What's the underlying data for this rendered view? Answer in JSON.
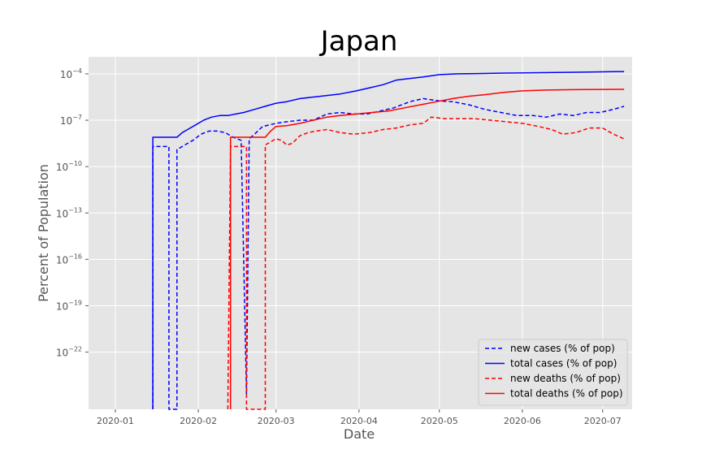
{
  "chart_data": {
    "type": "line",
    "title": "Japan",
    "xlabel": "Date",
    "ylabel": "Percent of Population",
    "x_tick_labels": [
      "2020-01",
      "2020-02",
      "2020-03",
      "2020-04",
      "2020-05",
      "2020-06",
      "2020-07"
    ],
    "x_tick_dates": [
      "2020-01-01",
      "2020-02-01",
      "2020-03-01",
      "2020-04-01",
      "2020-05-01",
      "2020-06-01",
      "2020-07-01"
    ],
    "xlim": [
      "2019-12-22",
      "2020-07-12"
    ],
    "y_scale": "log",
    "ylim_exp": [
      -25.7,
      -2.9
    ],
    "y_ticks": [
      {
        "base": "10",
        "exp": "−4",
        "value": 0.0001
      },
      {
        "base": "10",
        "exp": "−7",
        "value": 1e-07
      },
      {
        "base": "10",
        "exp": "−10",
        "value": 1e-10
      },
      {
        "base": "10",
        "exp": "−13",
        "value": 1e-13
      },
      {
        "base": "10",
        "exp": "−16",
        "value": 1e-16
      },
      {
        "base": "10",
        "exp": "−19",
        "value": 1e-19
      },
      {
        "base": "10",
        "exp": "−22",
        "value": 1e-22
      }
    ],
    "grid": true,
    "legend_position": "lower right",
    "series": [
      {
        "name": "new cases (% of pop)",
        "color": "#0000ff",
        "style": "dashed",
        "points": [
          [
            "2020-01-15",
            -26
          ],
          [
            "2020-01-15",
            -8.7
          ],
          [
            "2020-01-21",
            -8.7
          ],
          [
            "2020-01-21",
            -26
          ],
          [
            "2020-01-24",
            -26
          ],
          [
            "2020-01-24",
            -8.9
          ],
          [
            "2020-01-27",
            -8.6
          ],
          [
            "2020-01-30",
            -8.3
          ],
          [
            "2020-02-02",
            -7.9
          ],
          [
            "2020-02-05",
            -7.7
          ],
          [
            "2020-02-08",
            -7.7
          ],
          [
            "2020-02-11",
            -7.8
          ],
          [
            "2020-02-14",
            -8.1
          ],
          [
            "2020-02-17",
            -8.3
          ],
          [
            "2020-02-19",
            -24.7
          ],
          [
            "2020-02-20",
            -8.2
          ],
          [
            "2020-02-22",
            -7.9
          ],
          [
            "2020-02-25",
            -7.4
          ],
          [
            "2020-03-01",
            -7.2
          ],
          [
            "2020-03-05",
            -7.1
          ],
          [
            "2020-03-10",
            -7.0
          ],
          [
            "2020-03-15",
            -7.0
          ],
          [
            "2020-03-20",
            -6.6
          ],
          [
            "2020-03-25",
            -6.5
          ],
          [
            "2020-03-30",
            -6.6
          ],
          [
            "2020-04-04",
            -6.6
          ],
          [
            "2020-04-09",
            -6.4
          ],
          [
            "2020-04-14",
            -6.2
          ],
          [
            "2020-04-20",
            -5.8
          ],
          [
            "2020-04-25",
            -5.6
          ],
          [
            "2020-05-01",
            -5.75
          ],
          [
            "2020-05-06",
            -5.8
          ],
          [
            "2020-05-12",
            -6.0
          ],
          [
            "2020-05-18",
            -6.3
          ],
          [
            "2020-05-24",
            -6.5
          ],
          [
            "2020-05-30",
            -6.7
          ],
          [
            "2020-06-05",
            -6.7
          ],
          [
            "2020-06-10",
            -6.8
          ],
          [
            "2020-06-15",
            -6.6
          ],
          [
            "2020-06-20",
            -6.7
          ],
          [
            "2020-06-25",
            -6.5
          ],
          [
            "2020-06-30",
            -6.5
          ],
          [
            "2020-07-05",
            -6.3
          ],
          [
            "2020-07-09",
            -6.1
          ]
        ]
      },
      {
        "name": "total cases (% of pop)",
        "color": "#0000ff",
        "style": "solid",
        "points": [
          [
            "2020-01-15",
            -26
          ],
          [
            "2020-01-15",
            -8.1
          ],
          [
            "2020-01-24",
            -8.1
          ],
          [
            "2020-01-26",
            -7.8
          ],
          [
            "2020-01-28",
            -7.6
          ],
          [
            "2020-01-31",
            -7.3
          ],
          [
            "2020-02-03",
            -7.0
          ],
          [
            "2020-02-06",
            -6.8
          ],
          [
            "2020-02-09",
            -6.7
          ],
          [
            "2020-02-12",
            -6.7
          ],
          [
            "2020-02-15",
            -6.6
          ],
          [
            "2020-02-18",
            -6.5
          ],
          [
            "2020-02-22",
            -6.3
          ],
          [
            "2020-02-26",
            -6.1
          ],
          [
            "2020-03-01",
            -5.9
          ],
          [
            "2020-03-05",
            -5.8
          ],
          [
            "2020-03-10",
            -5.6
          ],
          [
            "2020-03-15",
            -5.5
          ],
          [
            "2020-03-20",
            -5.4
          ],
          [
            "2020-03-25",
            -5.3
          ],
          [
            "2020-03-31",
            -5.1
          ],
          [
            "2020-04-05",
            -4.9
          ],
          [
            "2020-04-10",
            -4.7
          ],
          [
            "2020-04-15",
            -4.4
          ],
          [
            "2020-04-20",
            -4.3
          ],
          [
            "2020-04-25",
            -4.2
          ],
          [
            "2020-05-01",
            -4.05
          ],
          [
            "2020-05-08",
            -4.0
          ],
          [
            "2020-05-15",
            -3.98
          ],
          [
            "2020-05-25",
            -3.95
          ],
          [
            "2020-06-05",
            -3.93
          ],
          [
            "2020-06-20",
            -3.9
          ],
          [
            "2020-07-09",
            -3.85
          ]
        ]
      },
      {
        "name": "new deaths (% of pop)",
        "color": "#ff0000",
        "style": "dashed",
        "points": [
          [
            "2020-02-12",
            -26
          ],
          [
            "2020-02-13",
            -8.7
          ],
          [
            "2020-02-19",
            -8.7
          ],
          [
            "2020-02-19",
            -26
          ],
          [
            "2020-02-26",
            -26
          ],
          [
            "2020-02-26",
            -8.6
          ],
          [
            "2020-03-01",
            -8.2
          ],
          [
            "2020-03-03",
            -8.3
          ],
          [
            "2020-03-05",
            -8.6
          ],
          [
            "2020-03-07",
            -8.5
          ],
          [
            "2020-03-10",
            -8.0
          ],
          [
            "2020-03-13",
            -7.8
          ],
          [
            "2020-03-16",
            -7.7
          ],
          [
            "2020-03-20",
            -7.6
          ],
          [
            "2020-03-25",
            -7.8
          ],
          [
            "2020-03-30",
            -7.9
          ],
          [
            "2020-04-05",
            -7.8
          ],
          [
            "2020-04-10",
            -7.6
          ],
          [
            "2020-04-15",
            -7.5
          ],
          [
            "2020-04-20",
            -7.3
          ],
          [
            "2020-04-25",
            -7.2
          ],
          [
            "2020-04-28",
            -6.8
          ],
          [
            "2020-05-03",
            -6.9
          ],
          [
            "2020-05-08",
            -6.9
          ],
          [
            "2020-05-14",
            -6.9
          ],
          [
            "2020-05-20",
            -7.0
          ],
          [
            "2020-05-26",
            -7.1
          ],
          [
            "2020-06-01",
            -7.2
          ],
          [
            "2020-06-07",
            -7.4
          ],
          [
            "2020-06-12",
            -7.6
          ],
          [
            "2020-06-16",
            -7.9
          ],
          [
            "2020-06-21",
            -7.8
          ],
          [
            "2020-06-26",
            -7.5
          ],
          [
            "2020-07-01",
            -7.5
          ],
          [
            "2020-07-05",
            -7.9
          ],
          [
            "2020-07-09",
            -8.2
          ]
        ]
      },
      {
        "name": "total deaths (% of pop)",
        "color": "#ff0000",
        "style": "solid",
        "points": [
          [
            "2020-02-13",
            -26
          ],
          [
            "2020-02-13",
            -8.1
          ],
          [
            "2020-02-26",
            -8.1
          ],
          [
            "2020-02-28",
            -7.7
          ],
          [
            "2020-03-01",
            -7.4
          ],
          [
            "2020-03-05",
            -7.35
          ],
          [
            "2020-03-10",
            -7.2
          ],
          [
            "2020-03-15",
            -7.0
          ],
          [
            "2020-03-20",
            -6.8
          ],
          [
            "2020-03-25",
            -6.7
          ],
          [
            "2020-03-31",
            -6.6
          ],
          [
            "2020-04-06",
            -6.5
          ],
          [
            "2020-04-12",
            -6.4
          ],
          [
            "2020-04-18",
            -6.2
          ],
          [
            "2020-04-24",
            -6.0
          ],
          [
            "2020-04-30",
            -5.8
          ],
          [
            "2020-05-06",
            -5.6
          ],
          [
            "2020-05-12",
            -5.45
          ],
          [
            "2020-05-18",
            -5.35
          ],
          [
            "2020-05-25",
            -5.2
          ],
          [
            "2020-06-01",
            -5.1
          ],
          [
            "2020-06-10",
            -5.05
          ],
          [
            "2020-06-20",
            -5.02
          ],
          [
            "2020-07-09",
            -5.0
          ]
        ]
      }
    ]
  }
}
